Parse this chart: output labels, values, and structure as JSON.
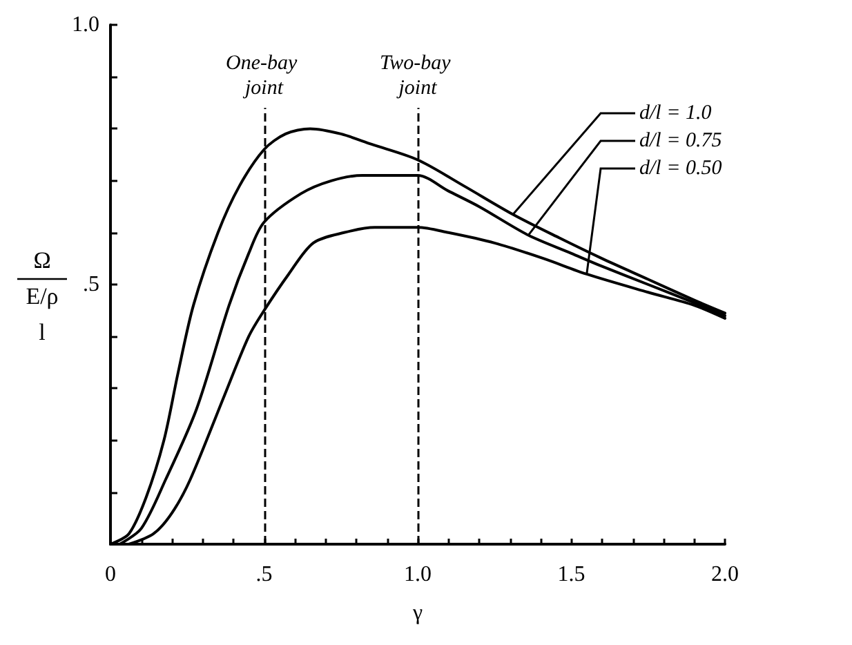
{
  "chart_data": {
    "type": "line",
    "xlabel": "γ",
    "ylabel": "Ω\nE/ρ\nl",
    "xlim": [
      0,
      2.0
    ],
    "ylim": [
      0,
      1.0
    ],
    "xticks": [
      {
        "value": 0,
        "label": "0"
      },
      {
        "value": 0.1,
        "label": null
      },
      {
        "value": 0.2,
        "label": null
      },
      {
        "value": 0.3,
        "label": null
      },
      {
        "value": 0.4,
        "label": null
      },
      {
        "value": 0.5,
        "label": ".5"
      },
      {
        "value": 0.6,
        "label": null
      },
      {
        "value": 0.7,
        "label": null
      },
      {
        "value": 0.8,
        "label": null
      },
      {
        "value": 0.9,
        "label": null
      },
      {
        "value": 1.0,
        "label": "1.0"
      },
      {
        "value": 1.1,
        "label": null
      },
      {
        "value": 1.2,
        "label": null
      },
      {
        "value": 1.3,
        "label": null
      },
      {
        "value": 1.4,
        "label": null
      },
      {
        "value": 1.5,
        "label": "1.5"
      },
      {
        "value": 1.6,
        "label": null
      },
      {
        "value": 1.7,
        "label": null
      },
      {
        "value": 1.8,
        "label": null
      },
      {
        "value": 1.9,
        "label": null
      },
      {
        "value": 2.0,
        "label": "2.0"
      }
    ],
    "yticks": [
      {
        "value": 0.1,
        "label": null
      },
      {
        "value": 0.2,
        "label": null
      },
      {
        "value": 0.3,
        "label": null
      },
      {
        "value": 0.4,
        "label": null
      },
      {
        "value": 0.5,
        "label": ".5"
      },
      {
        "value": 0.6,
        "label": null
      },
      {
        "value": 0.7,
        "label": null
      },
      {
        "value": 0.8,
        "label": null
      },
      {
        "value": 0.9,
        "label": null
      },
      {
        "value": 1.0,
        "label": "1.0"
      }
    ],
    "grid": false,
    "legend": false,
    "marker": "none",
    "line_style": "solid",
    "ref_lines": [
      {
        "axis": "x",
        "value": 0.5,
        "label": "One-bay joint",
        "line_style": "dashed",
        "color": "#000000"
      },
      {
        "axis": "x",
        "value": 1.0,
        "label": "Two-bay joint",
        "line_style": "dashed",
        "color": "#000000"
      }
    ],
    "series": [
      {
        "name": "d/l = 1.0",
        "color": "#000000",
        "x": [
          0,
          0.06,
          0.116,
          0.174,
          0.22,
          0.27,
          0.35,
          0.42,
          0.5,
          0.57,
          0.65,
          0.75,
          0.85,
          1.0,
          1.15,
          1.31,
          1.46,
          1.6,
          1.75,
          1.9,
          2.0
        ],
        "values": [
          0,
          0.02,
          0.09,
          0.2,
          0.33,
          0.46,
          0.6,
          0.69,
          0.76,
          0.79,
          0.8,
          0.79,
          0.77,
          0.74,
          0.69,
          0.635,
          0.59,
          0.55,
          0.51,
          0.47,
          0.445
        ]
      },
      {
        "name": "d/l = 0.75",
        "color": "#000000",
        "x": [
          0.03,
          0.1,
          0.18,
          0.28,
          0.386,
          0.45,
          0.5,
          0.62,
          0.72,
          0.82,
          0.9,
          1.0,
          1.1,
          1.2,
          1.36,
          1.5,
          1.6,
          1.75,
          1.9,
          2.0
        ],
        "values": [
          0,
          0.03,
          0.125,
          0.26,
          0.46,
          0.56,
          0.62,
          0.675,
          0.7,
          0.71,
          0.71,
          0.71,
          0.68,
          0.65,
          0.595,
          0.56,
          0.535,
          0.5,
          0.465,
          0.44
        ]
      },
      {
        "name": "d/l = 0.50",
        "color": "#000000",
        "x": [
          0.06,
          0.14,
          0.2,
          0.26,
          0.37,
          0.45,
          0.5,
          0.58,
          0.66,
          0.76,
          0.86,
          1.0,
          1.1,
          1.25,
          1.41,
          1.55,
          1.75,
          1.9,
          2.0
        ],
        "values": [
          0,
          0.02,
          0.06,
          0.125,
          0.285,
          0.4,
          0.45,
          0.52,
          0.58,
          0.6,
          0.61,
          0.61,
          0.6,
          0.58,
          0.55,
          0.52,
          0.485,
          0.46,
          0.435
        ]
      }
    ]
  }
}
